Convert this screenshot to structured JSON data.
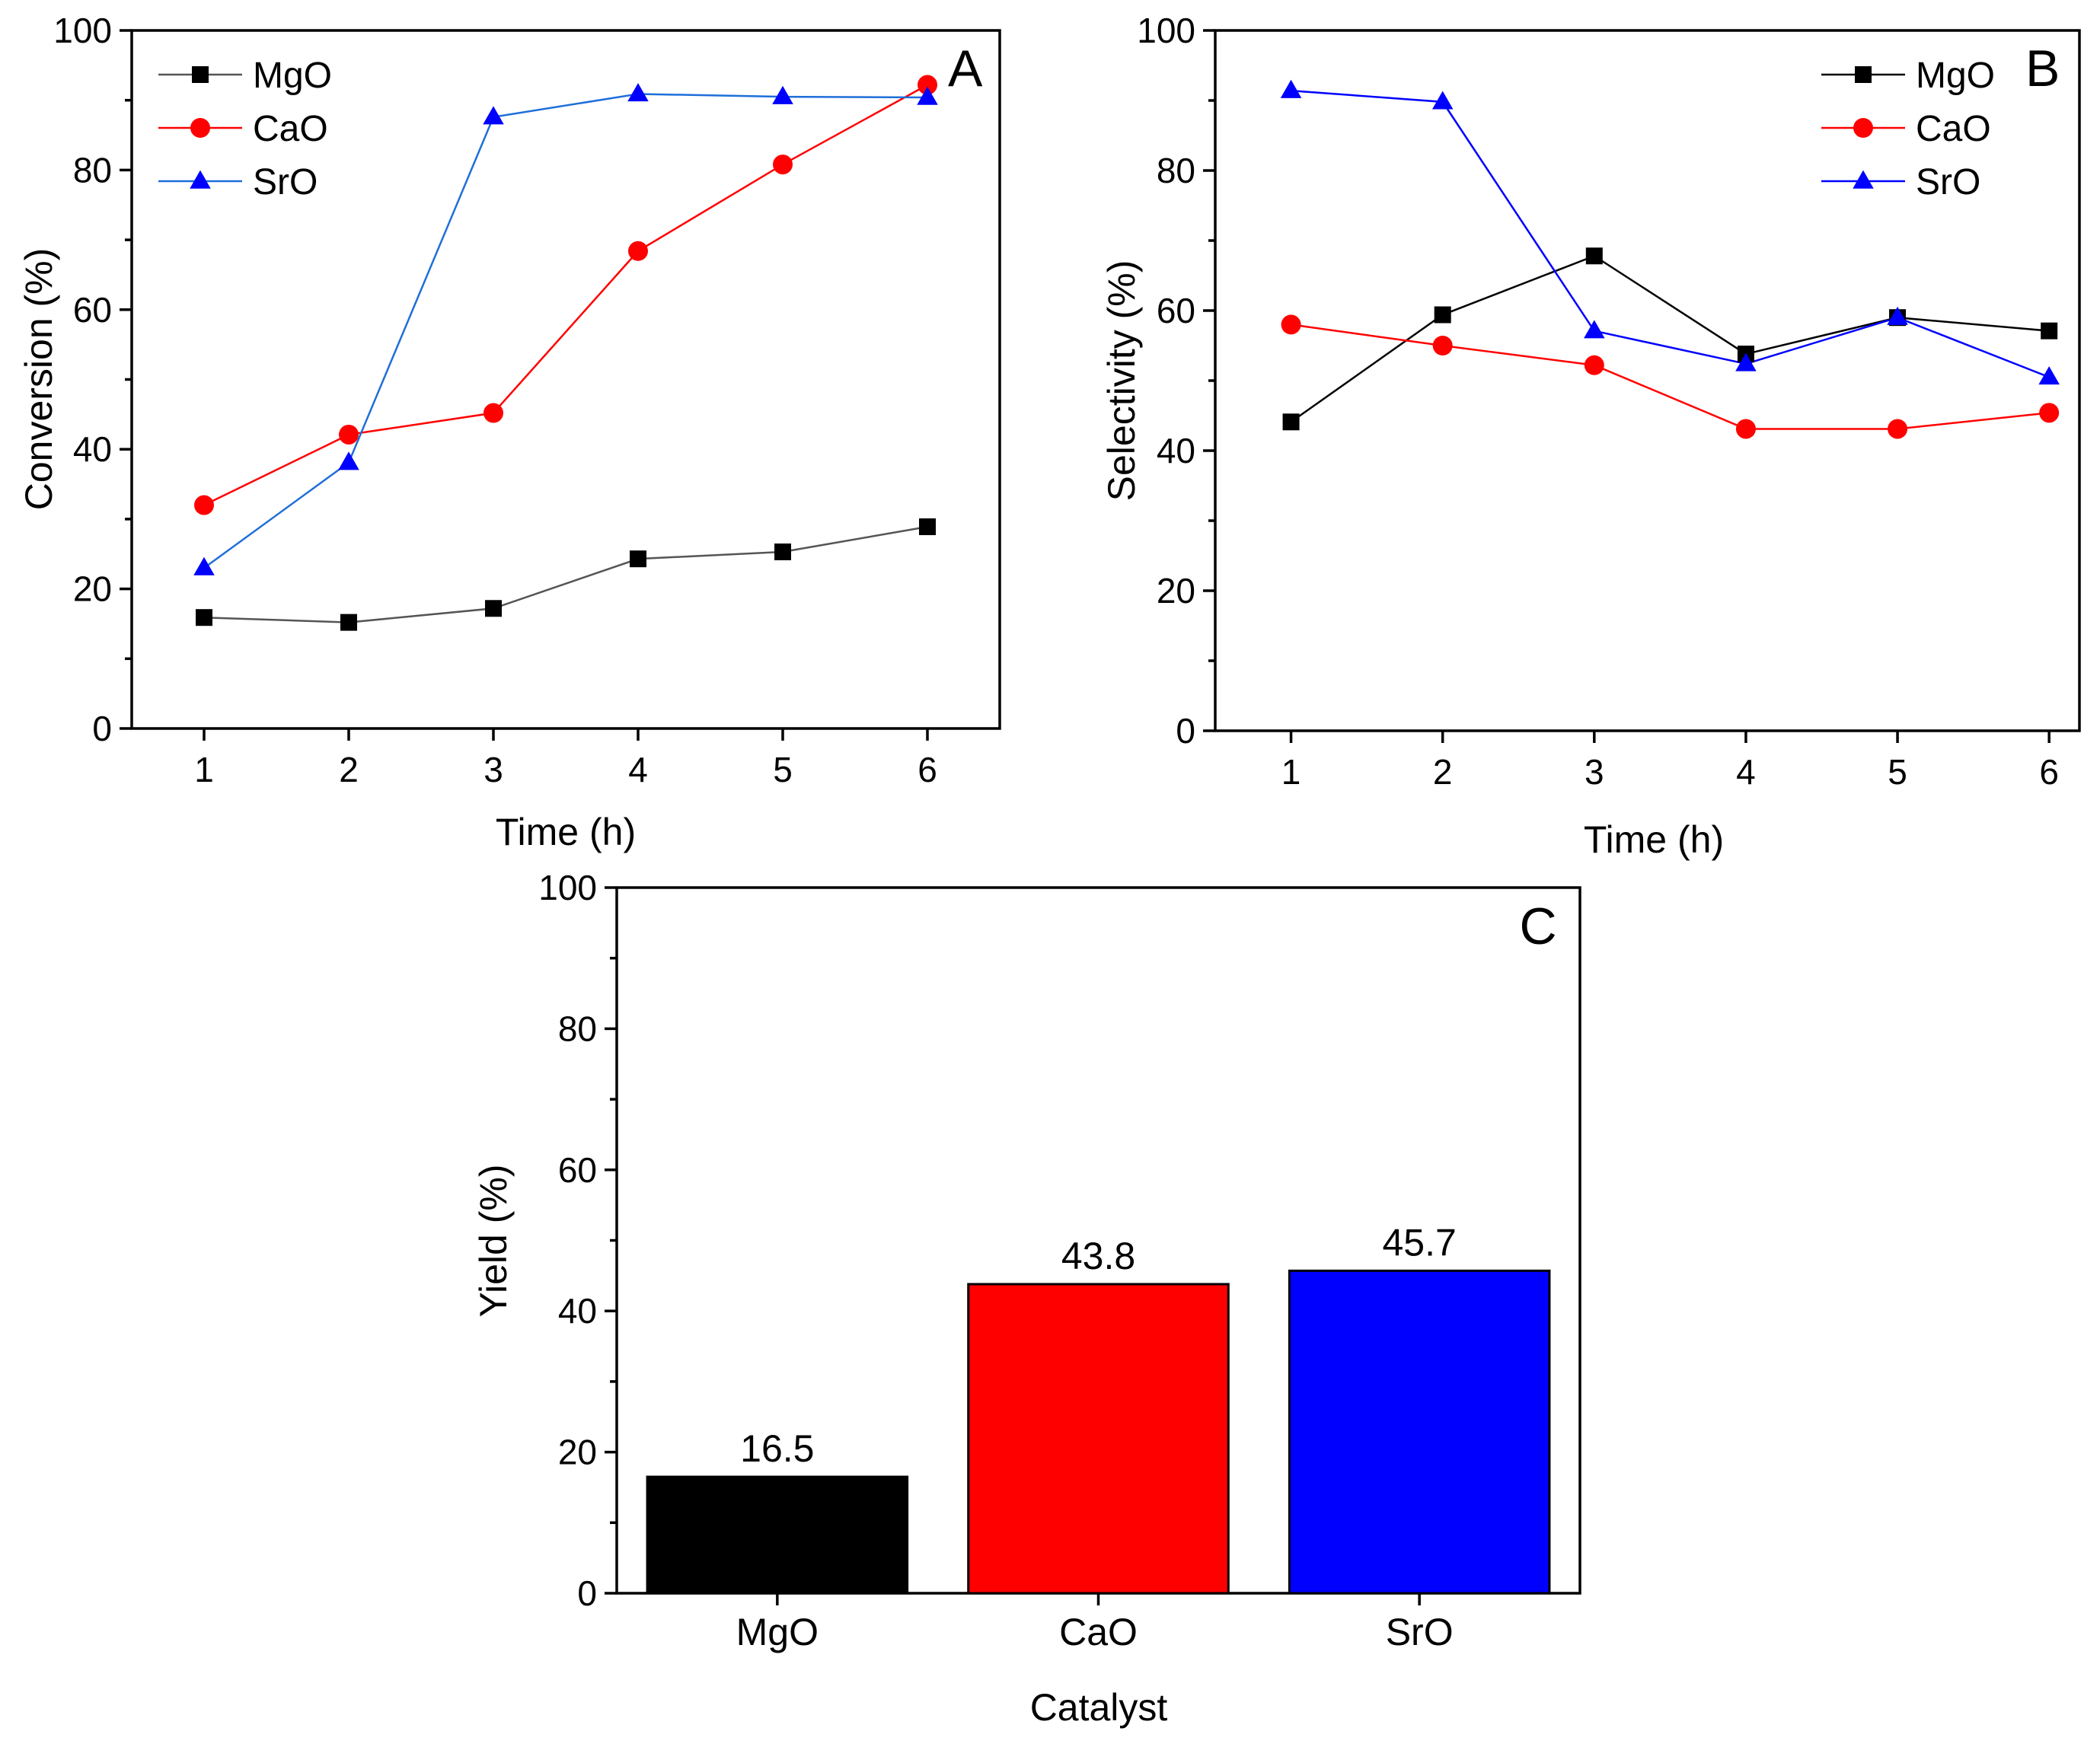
{
  "chart_data": [
    {
      "panel": "A",
      "type": "line",
      "xlabel": "Time (h)",
      "ylabel": "Conversion (%)",
      "x": [
        1,
        2,
        3,
        4,
        5,
        6
      ],
      "xticks": [
        "1",
        "2",
        "3",
        "4",
        "5",
        "6"
      ],
      "yticks": [
        "0",
        "20",
        "40",
        "60",
        "80",
        "100"
      ],
      "ylim": [
        0,
        100
      ],
      "xlim": [
        0.5,
        6.5
      ],
      "legend_position": "top-left",
      "series": [
        {
          "name": "MgO",
          "color": "#000000",
          "line_color": "#555555",
          "marker": "square",
          "values": [
            15.9,
            15.2,
            17.2,
            24.3,
            25.3,
            28.9
          ]
        },
        {
          "name": "CaO",
          "color": "#ff0000",
          "line_color": "#ff0000",
          "marker": "circle",
          "values": [
            32.0,
            42.1,
            45.2,
            68.4,
            80.8,
            92.2
          ]
        },
        {
          "name": "SrO",
          "color": "#0000ff",
          "line_color": "#1e6fd9",
          "marker": "triangle",
          "values": [
            23.0,
            38.1,
            87.6,
            90.9,
            90.5,
            90.4
          ]
        }
      ]
    },
    {
      "panel": "B",
      "type": "line",
      "xlabel": "Time (h)",
      "ylabel": "Selectivity (%)",
      "x": [
        1,
        2,
        3,
        4,
        5,
        6
      ],
      "xticks": [
        "1",
        "2",
        "3",
        "4",
        "5",
        "6"
      ],
      "yticks": [
        "0",
        "20",
        "40",
        "60",
        "80",
        "100"
      ],
      "ylim": [
        0,
        100
      ],
      "xlim": [
        0.5,
        6.2
      ],
      "legend_position": "top-right",
      "series": [
        {
          "name": "MgO",
          "color": "#000000",
          "line_color": "#000000",
          "marker": "square",
          "values": [
            44.1,
            59.4,
            67.8,
            53.8,
            59.0,
            57.1
          ]
        },
        {
          "name": "CaO",
          "color": "#ff0000",
          "line_color": "#ff0000",
          "marker": "circle",
          "values": [
            58.0,
            55.0,
            52.2,
            43.1,
            43.1,
            45.4
          ]
        },
        {
          "name": "SrO",
          "color": "#0000ff",
          "line_color": "#0000ff",
          "marker": "triangle",
          "values": [
            91.4,
            89.8,
            57.1,
            52.4,
            59.0,
            50.5
          ]
        }
      ]
    },
    {
      "panel": "C",
      "type": "bar",
      "xlabel": "Catalyst",
      "ylabel": "Yield (%)",
      "categories": [
        "MgO",
        "CaO",
        "SrO"
      ],
      "values": [
        16.5,
        43.8,
        45.7
      ],
      "value_labels": [
        "16.5",
        "43.8",
        "45.7"
      ],
      "colors": [
        "#000000",
        "#ff0000",
        "#0000ff"
      ],
      "yticks": [
        "0",
        "20",
        "40",
        "60",
        "80",
        "100"
      ],
      "ylim": [
        0,
        100
      ]
    }
  ]
}
